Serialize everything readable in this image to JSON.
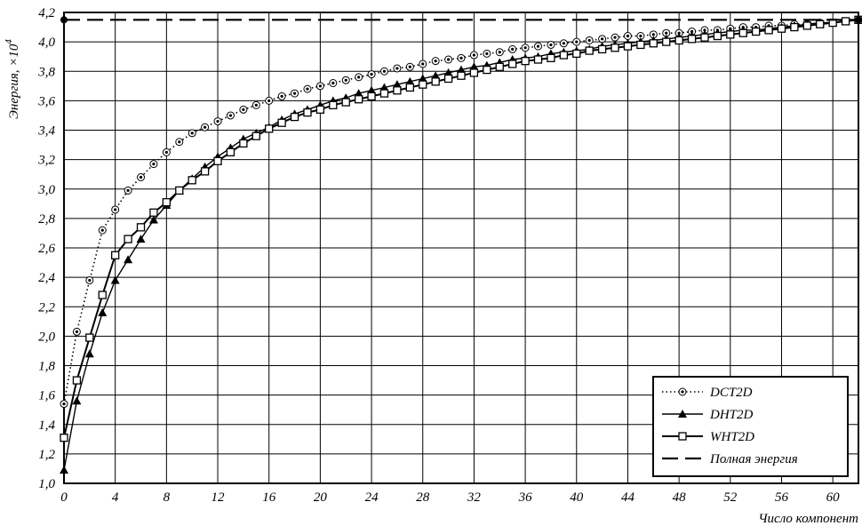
{
  "chart_data": {
    "type": "line",
    "xlabel": "Число компонент",
    "ylabel": "Энергия, ×10",
    "ylabel_exponent": "4",
    "xlim": [
      0,
      62
    ],
    "ylim": [
      1.0,
      4.2
    ],
    "x_ticks": [
      0,
      4,
      8,
      12,
      16,
      20,
      24,
      28,
      32,
      36,
      40,
      44,
      48,
      52,
      56,
      60
    ],
    "x_tick_labels": [
      "0",
      "4",
      "8",
      "12",
      "16",
      "20",
      "24",
      "28",
      "32",
      "36",
      "40",
      "44",
      "48",
      "52",
      "56",
      "60"
    ],
    "y_ticks": [
      1.0,
      1.2,
      1.4,
      1.6,
      1.8,
      2.0,
      2.2,
      2.4,
      2.6,
      2.8,
      3.0,
      3.2,
      3.4,
      3.6,
      3.8,
      4.0,
      4.2
    ],
    "y_tick_labels": [
      "1,0",
      "1,2",
      "1,4",
      "1,6",
      "1,8",
      "2,0",
      "2,2",
      "2,4",
      "2,6",
      "2,8",
      "3,0",
      "3,2",
      "3,4",
      "3,6",
      "3,8",
      "4,0",
      "4,2"
    ],
    "grid": true,
    "legend_position": "bottom-right",
    "series": [
      {
        "name": "DCT2D",
        "style": "dotted-circle",
        "x": [
          0,
          1,
          2,
          3,
          4,
          5,
          6,
          7,
          8,
          9,
          10,
          11,
          12,
          13,
          14,
          15,
          16,
          17,
          18,
          19,
          20,
          21,
          22,
          23,
          24,
          25,
          26,
          27,
          28,
          29,
          30,
          31,
          32,
          33,
          34,
          35,
          36,
          37,
          38,
          39,
          40,
          41,
          42,
          43,
          44,
          45,
          46,
          47,
          48,
          49,
          50,
          51,
          52,
          53,
          54,
          55,
          56,
          57,
          58,
          59,
          60,
          61,
          62
        ],
        "values": [
          1.54,
          2.03,
          2.38,
          2.72,
          2.86,
          2.99,
          3.08,
          3.17,
          3.25,
          3.32,
          3.38,
          3.42,
          3.46,
          3.5,
          3.54,
          3.57,
          3.6,
          3.63,
          3.65,
          3.68,
          3.7,
          3.72,
          3.74,
          3.76,
          3.78,
          3.8,
          3.82,
          3.83,
          3.85,
          3.87,
          3.88,
          3.89,
          3.91,
          3.92,
          3.93,
          3.95,
          3.96,
          3.97,
          3.98,
          3.99,
          4.0,
          4.01,
          4.02,
          4.03,
          4.04,
          4.04,
          4.05,
          4.06,
          4.06,
          4.07,
          4.08,
          4.08,
          4.09,
          4.1,
          4.1,
          4.11,
          4.11,
          4.12,
          4.12,
          4.13,
          4.13,
          4.14,
          4.15
        ]
      },
      {
        "name": "DHT2D",
        "style": "solid-triangle",
        "x": [
          0,
          1,
          2,
          3,
          4,
          5,
          6,
          7,
          8,
          9,
          10,
          11,
          12,
          13,
          14,
          15,
          16,
          17,
          18,
          19,
          20,
          21,
          22,
          23,
          24,
          25,
          26,
          27,
          28,
          29,
          30,
          31,
          32,
          33,
          34,
          35,
          36,
          37,
          38,
          39,
          40,
          41,
          42,
          43,
          44,
          45,
          46,
          47,
          48,
          49,
          50,
          51,
          52,
          53,
          54,
          55,
          56,
          57,
          58,
          59,
          60,
          61,
          62
        ],
        "values": [
          1.09,
          1.56,
          1.88,
          2.16,
          2.38,
          2.52,
          2.66,
          2.79,
          2.89,
          2.99,
          3.07,
          3.15,
          3.22,
          3.28,
          3.34,
          3.38,
          3.42,
          3.47,
          3.51,
          3.54,
          3.57,
          3.6,
          3.62,
          3.65,
          3.67,
          3.69,
          3.71,
          3.73,
          3.75,
          3.77,
          3.79,
          3.81,
          3.83,
          3.84,
          3.86,
          3.88,
          3.89,
          3.9,
          3.92,
          3.93,
          3.94,
          3.95,
          3.97,
          3.98,
          3.99,
          4.0,
          4.01,
          4.02,
          4.03,
          4.04,
          4.05,
          4.06,
          4.07,
          4.08,
          4.08,
          4.09,
          4.1,
          4.11,
          4.12,
          4.13,
          4.13,
          4.14,
          4.15
        ]
      },
      {
        "name": "WHT2D",
        "style": "solid-square",
        "x": [
          0,
          1,
          2,
          3,
          4,
          5,
          6,
          7,
          8,
          9,
          10,
          11,
          12,
          13,
          14,
          15,
          16,
          17,
          18,
          19,
          20,
          21,
          22,
          23,
          24,
          25,
          26,
          27,
          28,
          29,
          30,
          31,
          32,
          33,
          34,
          35,
          36,
          37,
          38,
          39,
          40,
          41,
          42,
          43,
          44,
          45,
          46,
          47,
          48,
          49,
          50,
          51,
          52,
          53,
          54,
          55,
          56,
          57,
          58,
          59,
          60,
          61,
          62
        ],
        "values": [
          1.31,
          1.7,
          1.99,
          2.28,
          2.55,
          2.66,
          2.74,
          2.84,
          2.91,
          2.99,
          3.06,
          3.12,
          3.19,
          3.25,
          3.31,
          3.36,
          3.41,
          3.45,
          3.49,
          3.52,
          3.54,
          3.57,
          3.59,
          3.61,
          3.63,
          3.65,
          3.67,
          3.69,
          3.71,
          3.73,
          3.75,
          3.77,
          3.79,
          3.81,
          3.83,
          3.85,
          3.87,
          3.88,
          3.89,
          3.91,
          3.92,
          3.94,
          3.95,
          3.96,
          3.97,
          3.98,
          3.99,
          4.0,
          4.01,
          4.02,
          4.03,
          4.04,
          4.05,
          4.06,
          4.07,
          4.08,
          4.09,
          4.1,
          4.11,
          4.12,
          4.13,
          4.14,
          4.15
        ]
      },
      {
        "name": "Полная энергия",
        "style": "dashed",
        "x": [
          0,
          62
        ],
        "values": [
          4.15,
          4.15
        ]
      }
    ]
  }
}
